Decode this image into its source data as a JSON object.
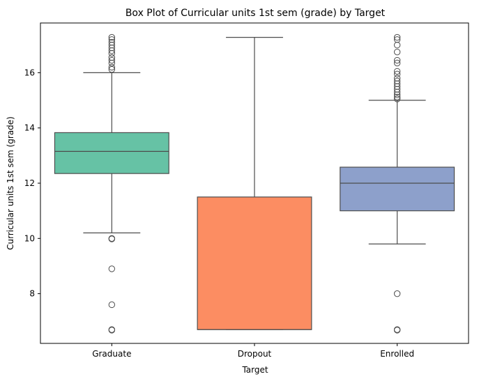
{
  "chart_data": {
    "type": "box",
    "title": "Box Plot of Curricular units 1st sem (grade) by Target",
    "xlabel": "Target",
    "ylabel": "Curricular units 1st sem (grade)",
    "ylim": [
      6.2,
      17.8
    ],
    "yticks": [
      8,
      10,
      12,
      14,
      16
    ],
    "ytick_labels": [
      "8",
      "10",
      "12",
      "14",
      "16"
    ],
    "categories": [
      "Graduate",
      "Dropout",
      "Enrolled"
    ],
    "colors": [
      "#66c2a5",
      "#fc8d62",
      "#8da0cb"
    ],
    "grid": false,
    "boxes": [
      {
        "name": "Graduate",
        "whisker_low": 10.2,
        "q1": 12.35,
        "median": 13.15,
        "q3": 13.83,
        "whisker_high": 16.0,
        "outliers": [
          17.28,
          17.2,
          17.1,
          17.0,
          16.9,
          16.8,
          16.7,
          16.55,
          16.45,
          16.35,
          16.2,
          16.12,
          10.0,
          9.98,
          8.9,
          7.6,
          6.7,
          6.68
        ]
      },
      {
        "name": "Dropout",
        "whisker_low": 6.7,
        "q1": 6.7,
        "median": 6.7,
        "q3": 11.5,
        "whisker_high": 17.28,
        "outliers": []
      },
      {
        "name": "Enrolled",
        "whisker_low": 9.8,
        "q1": 11.0,
        "median": 12.0,
        "q3": 12.58,
        "whisker_high": 15.0,
        "outliers": [
          17.28,
          17.2,
          17.0,
          16.75,
          16.45,
          16.35,
          16.05,
          15.95,
          15.8,
          15.7,
          15.6,
          15.5,
          15.4,
          15.3,
          15.2,
          15.12,
          15.05,
          8.0,
          6.7,
          6.68
        ]
      }
    ]
  }
}
